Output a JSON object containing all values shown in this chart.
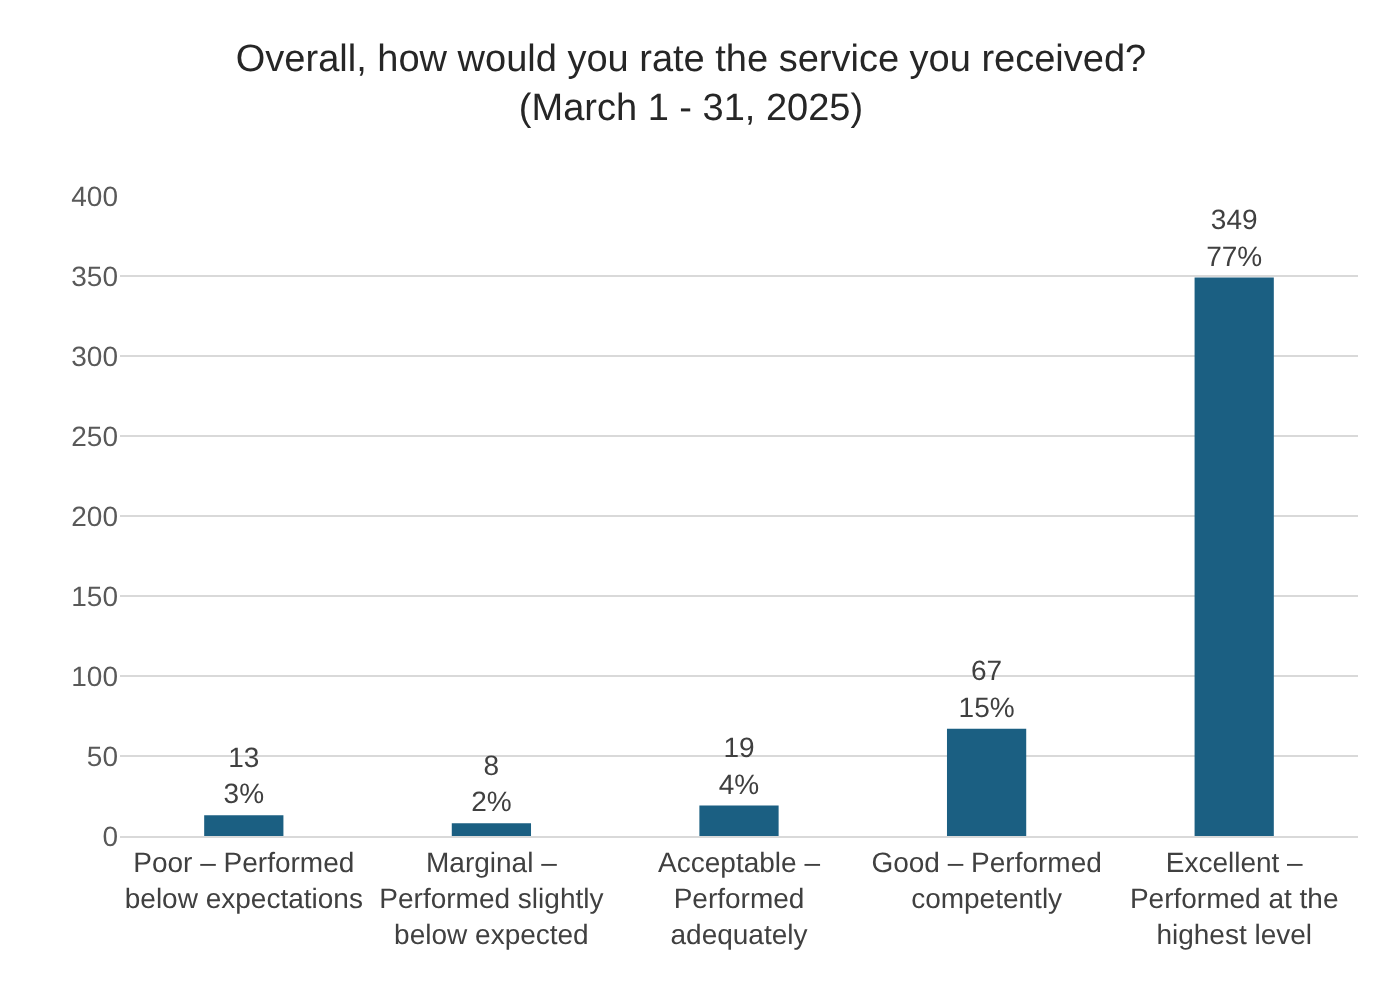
{
  "chart_data": {
    "type": "bar",
    "title": "Overall, how would you rate the service you received?\n(March 1 - 31, 2025)",
    "categories": [
      "Poor – Performed below expectations",
      "Marginal – Performed slightly below expected",
      "Acceptable – Performed adequately",
      "Good – Performed competently",
      "Excellent – Performed at the highest level"
    ],
    "values": [
      13,
      8,
      19,
      67,
      349
    ],
    "value_labels": [
      "13\n3%",
      "8\n2%",
      "19\n4%",
      "67\n15%",
      "349\n77%"
    ],
    "color": "#1b5f82",
    "ylim": [
      0,
      400
    ],
    "yticks": [
      0,
      50,
      100,
      150,
      200,
      250,
      300,
      350,
      400
    ],
    "grid": "y"
  }
}
